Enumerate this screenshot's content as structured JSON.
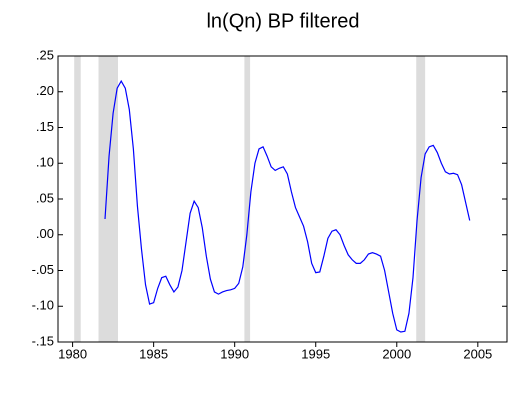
{
  "chart_data": {
    "type": "line",
    "title": "ln(Qn) BP filtered",
    "x": [
      1982,
      1982.25,
      1982.5,
      1982.75,
      1983,
      1983.25,
      1983.5,
      1983.75,
      1984,
      1984.25,
      1984.5,
      1984.75,
      1985,
      1985.25,
      1985.5,
      1985.75,
      1986,
      1986.25,
      1986.5,
      1986.75,
      1987,
      1987.25,
      1987.5,
      1987.75,
      1988,
      1988.25,
      1988.5,
      1988.75,
      1989,
      1989.25,
      1989.5,
      1989.75,
      1990,
      1990.25,
      1990.5,
      1990.75,
      1991,
      1991.25,
      1991.5,
      1991.75,
      1992,
      1992.25,
      1992.5,
      1992.75,
      1993,
      1993.25,
      1993.5,
      1993.75,
      1994,
      1994.25,
      1994.5,
      1994.75,
      1995,
      1995.25,
      1995.5,
      1995.75,
      1996,
      1996.25,
      1996.5,
      1996.75,
      1997,
      1997.25,
      1997.5,
      1997.75,
      1998,
      1998.25,
      1998.5,
      1998.75,
      1999,
      1999.25,
      1999.5,
      1999.75,
      2000,
      2000.25,
      2000.5,
      2000.75,
      2001,
      2001.25,
      2001.5,
      2001.75,
      2002,
      2002.25,
      2002.5,
      2002.75,
      2003,
      2003.25,
      2003.5,
      2003.75,
      2004,
      2004.25,
      2004.5
    ],
    "series": [
      {
        "color": "#0000ff",
        "values": [
          0.022,
          0.11,
          0.17,
          0.205,
          0.215,
          0.205,
          0.175,
          0.12,
          0.04,
          -0.02,
          -0.07,
          -0.097,
          -0.095,
          -0.075,
          -0.06,
          -0.058,
          -0.07,
          -0.08,
          -0.073,
          -0.05,
          -0.01,
          0.03,
          0.047,
          0.038,
          0.01,
          -0.03,
          -0.062,
          -0.08,
          -0.083,
          -0.08,
          -0.078,
          -0.077,
          -0.075,
          -0.068,
          -0.045,
          0,
          0.06,
          0.1,
          0.12,
          0.123,
          0.11,
          0.095,
          0.09,
          0.093,
          0.095,
          0.085,
          0.06,
          0.038,
          0.025,
          0.012,
          -0.01,
          -0.04,
          -0.053,
          -0.052,
          -0.03,
          -0.005,
          0.005,
          0.007,
          0,
          -0.015,
          -0.028,
          -0.035,
          -0.04,
          -0.04,
          -0.035,
          -0.027,
          -0.025,
          -0.027,
          -0.03,
          -0.05,
          -0.08,
          -0.11,
          -0.133,
          -0.136,
          -0.135,
          -0.11,
          -0.06,
          0.02,
          0.08,
          0.113,
          0.123,
          0.125,
          0.115,
          0.1,
          0.088,
          0.085,
          0.086,
          0.084,
          0.07,
          0.045,
          0.02
        ]
      }
    ],
    "shaded": [
      [
        1980.1,
        1980.5
      ],
      [
        1981.6,
        1982.8
      ],
      [
        1990.6,
        1990.95
      ],
      [
        2001.2,
        2001.75
      ]
    ],
    "shade_color": "#dcdcdc",
    "xlim": [
      1979.1,
      2006.8
    ],
    "xticks": [
      1980,
      1985,
      1990,
      1995,
      2000,
      2005
    ],
    "ylim": [
      -0.15,
      0.25
    ],
    "yticks": [
      {
        "value": -0.15,
        "label": "-.15"
      },
      {
        "value": -0.1,
        "label": "-.10"
      },
      {
        "value": -0.05,
        "label": "-.05"
      },
      {
        "value": 0,
        "label": ".00"
      },
      {
        "value": 0.05,
        "label": ".05"
      },
      {
        "value": 0.1,
        "label": ".10"
      },
      {
        "value": 0.15,
        "label": ".15"
      },
      {
        "value": 0.2,
        "label": ".20"
      },
      {
        "value": 0.25,
        "label": ".25"
      }
    ]
  }
}
